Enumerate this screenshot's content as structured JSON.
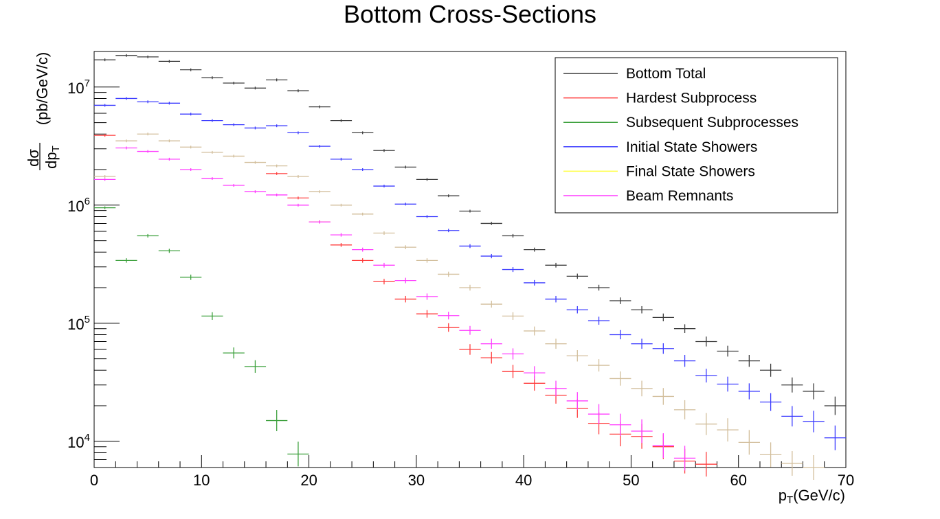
{
  "chart_data": {
    "type": "scatter",
    "title": "Bottom Cross-Sections",
    "xlabel": {
      "main": "p",
      "sub": "T",
      "unit": "(GeV/c)"
    },
    "ylabel": {
      "numerator": "dσ",
      "denominator": {
        "main": "dp",
        "sub": "T"
      },
      "unit": "(pb/GeV/c)"
    },
    "log_y": true,
    "xlim": [
      0,
      70
    ],
    "ylim": [
      6000,
      20000000
    ],
    "grid": false,
    "legend_position": "top-right",
    "x_ticks": [
      {
        "value": 0,
        "label": "0"
      },
      {
        "value": 10,
        "label": "10"
      },
      {
        "value": 20,
        "label": "20"
      },
      {
        "value": 30,
        "label": "30"
      },
      {
        "value": 40,
        "label": "40"
      },
      {
        "value": 50,
        "label": "50"
      },
      {
        "value": 60,
        "label": "60"
      },
      {
        "value": 70,
        "label": "70"
      }
    ],
    "y_ticks": [
      {
        "value": 10000,
        "base": "10",
        "exp": "4"
      },
      {
        "value": 100000,
        "base": "10",
        "exp": "5"
      },
      {
        "value": 1000000,
        "base": "10",
        "exp": "6"
      },
      {
        "value": 10000000,
        "base": "10",
        "exp": "7"
      }
    ],
    "series": [
      {
        "name": "Bottom Total",
        "color": "#3c3c3c",
        "markers": "bins",
        "x": [
          1,
          3,
          5,
          7,
          9,
          11,
          13,
          15,
          17,
          19,
          21,
          23,
          25,
          27,
          29,
          31,
          33,
          35,
          37,
          39,
          41,
          43,
          45,
          47,
          49,
          51,
          53,
          55,
          57,
          59,
          61,
          63,
          65,
          67,
          69
        ],
        "y": [
          17000000,
          18500000,
          18000000,
          16500000,
          14000000,
          12000000,
          10800000,
          9800000,
          11500000,
          9300000,
          6800000,
          5200000,
          4100000,
          2900000,
          2100000,
          1650000,
          1200000,
          890000,
          700000,
          550000,
          420000,
          310000,
          250000,
          200000,
          155000,
          130000,
          112000,
          90000,
          70000,
          58000,
          48000,
          40000,
          30000,
          26500,
          20000
        ]
      },
      {
        "name": "Hardest Subprocess",
        "color": "#ff3c3c",
        "markers": "bins",
        "x": [
          1,
          17,
          19,
          21,
          23,
          25,
          27,
          29,
          31,
          33,
          35,
          37,
          39,
          41,
          43,
          45,
          47,
          49,
          51,
          53,
          55,
          57
        ],
        "y": [
          3900000,
          1850000,
          1150000,
          720000,
          460000,
          340000,
          225000,
          160000,
          120000,
          92000,
          60000,
          51000,
          39000,
          31000,
          24500,
          19000,
          14200,
          11500,
          11000,
          9000,
          6800,
          6400
        ]
      },
      {
        "name": "Subsequent Subprocesses",
        "color": "#3ca03c",
        "markers": "bins",
        "x": [
          1,
          3,
          5,
          7,
          9,
          11,
          13,
          15,
          17,
          19
        ],
        "y": [
          950000,
          340000,
          550000,
          410000,
          245000,
          115000,
          56000,
          43000,
          15000,
          7800
        ]
      },
      {
        "name": "Initial State Showers",
        "color": "#3c3cff",
        "markers": "bins",
        "x": [
          1,
          3,
          5,
          7,
          9,
          11,
          13,
          15,
          17,
          19,
          21,
          23,
          25,
          27,
          29,
          31,
          33,
          35,
          37,
          39,
          41,
          43,
          45,
          47,
          49,
          51,
          53,
          55,
          57,
          59,
          61,
          63,
          65,
          67,
          69
        ],
        "y": [
          7000000,
          8000000,
          7500000,
          7300000,
          5900000,
          5200000,
          4800000,
          4500000,
          4700000,
          4100000,
          3150000,
          2450000,
          2000000,
          1450000,
          1020000,
          800000,
          610000,
          450000,
          370000,
          285000,
          220000,
          160000,
          130000,
          105000,
          80000,
          67000,
          61000,
          48000,
          36000,
          30500,
          26500,
          21500,
          16300,
          14700,
          10700
        ]
      },
      {
        "name": "Final State Showers",
        "color": "#ffff3c",
        "markers": "bins",
        "x": [],
        "y": []
      },
      {
        "name": "Beam Remnants",
        "color": "#ff3cff",
        "markers": "bins",
        "x": [
          1,
          3,
          5,
          7,
          9,
          11,
          13,
          15,
          17,
          19,
          21,
          23,
          25,
          27,
          29,
          31,
          33,
          35,
          37,
          39,
          41,
          43,
          45,
          47,
          49,
          51,
          53,
          55
        ],
        "y": [
          1650000,
          3050000,
          2850000,
          2450000,
          2000000,
          1680000,
          1470000,
          1300000,
          1220000,
          1000000,
          720000,
          560000,
          420000,
          310000,
          230000,
          168000,
          116000,
          87000,
          67000,
          55000,
          38000,
          28000,
          22000,
          17000,
          13800,
          12200,
          9200,
          7200
        ]
      },
      {
        "name": "",
        "color": "#d2be9b",
        "markers": "bins",
        "x": [
          1,
          3,
          5,
          7,
          9,
          11,
          13,
          15,
          17,
          19,
          21,
          23,
          25,
          27,
          29,
          31,
          33,
          35,
          37,
          39,
          41,
          43,
          45,
          47,
          49,
          51,
          53,
          55,
          57,
          59,
          61,
          63,
          65,
          67,
          69
        ],
        "y": [
          1750000,
          3500000,
          4000000,
          3500000,
          3100000,
          2800000,
          2600000,
          2300000,
          2150000,
          1750000,
          1300000,
          1000000,
          840000,
          580000,
          440000,
          340000,
          260000,
          200000,
          145000,
          115000,
          86000,
          67000,
          53000,
          44000,
          34000,
          28000,
          24000,
          18500,
          14000,
          12500,
          9800,
          7700,
          6500,
          6000,
          5900
        ]
      }
    ],
    "legend": [
      {
        "label": "Bottom Total",
        "color": "#3c3c3c"
      },
      {
        "label": "Hardest Subprocess",
        "color": "#ff3c3c"
      },
      {
        "label": "Subsequent Subprocesses",
        "color": "#3ca03c"
      },
      {
        "label": "Initial State Showers",
        "color": "#3c3cff"
      },
      {
        "label": "Final State Showers",
        "color": "#ffff3c"
      },
      {
        "label": "Beam Remnants",
        "color": "#ff3cff"
      }
    ]
  }
}
